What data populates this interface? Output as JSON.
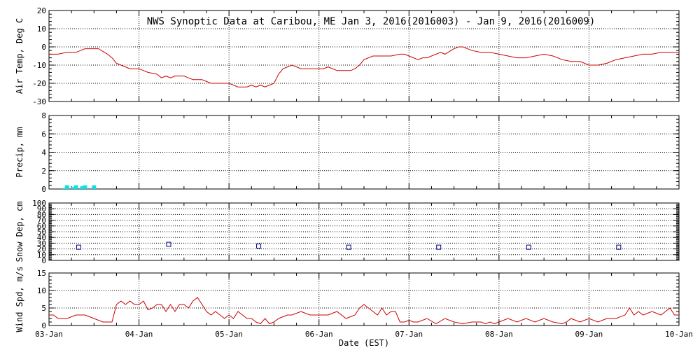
{
  "chart_data": {
    "title": "NWS Synoptic Data at Caribou, ME   Jan  3, 2016(2016003) - Jan  9, 2016(2016009)",
    "xlabel": "Date (EST)",
    "x_ticks": [
      "03-Jan",
      "04-Jan",
      "05-Jan",
      "06-Jan",
      "07-Jan",
      "08-Jan",
      "09-Jan",
      "10-Jan"
    ],
    "x_range_days": [
      0,
      7
    ],
    "colors": {
      "line": "#cc0000",
      "precip": "#00e5e5",
      "snow": "#000080",
      "axis": "#000000",
      "grid": "#000000"
    },
    "panels": [
      {
        "id": "temp",
        "type": "line",
        "ylabel": "Air Temp, Deg C",
        "ylim": [
          -30,
          20
        ],
        "yticks": [
          -30,
          -20,
          -10,
          0,
          10,
          20
        ],
        "grid": true,
        "series": [
          {
            "x": [
              0,
              0.1,
              0.2,
              0.3,
              0.35,
              0.4,
              0.5,
              0.55,
              0.65,
              0.7,
              0.75,
              0.8,
              0.85,
              0.9,
              1.0,
              1.05,
              1.1,
              1.2,
              1.25,
              1.3,
              1.35,
              1.4,
              1.5,
              1.6,
              1.7,
              1.8,
              1.9,
              2.0,
              2.05,
              2.1,
              2.15,
              2.2,
              2.25,
              2.3,
              2.35,
              2.4,
              2.45,
              2.5,
              2.55,
              2.6,
              2.65,
              2.7,
              2.75,
              2.8,
              2.9,
              3.0,
              3.05,
              3.1,
              3.2,
              3.3,
              3.35,
              3.4,
              3.45,
              3.5,
              3.6,
              3.7,
              3.8,
              3.9,
              3.95,
              4.0,
              4.05,
              4.1,
              4.15,
              4.2,
              4.3,
              4.35,
              4.4,
              4.5,
              4.55,
              4.6,
              4.7,
              4.8,
              4.9,
              5.0,
              5.1,
              5.2,
              5.3,
              5.4,
              5.5,
              5.6,
              5.7,
              5.8,
              5.9,
              6.0,
              6.1,
              6.2,
              6.3,
              6.4,
              6.5,
              6.6,
              6.7,
              6.8,
              6.9,
              7.0
            ],
            "y": [
              -4,
              -4,
              -3,
              -3,
              -2,
              -1,
              -1,
              -1,
              -4,
              -6,
              -9,
              -10,
              -11,
              -12,
              -12,
              -13,
              -14,
              -15,
              -17,
              -16,
              -17,
              -16,
              -16,
              -18,
              -18,
              -20,
              -20,
              -20,
              -21,
              -22,
              -22,
              -22,
              -21,
              -22,
              -21,
              -22,
              -21,
              -20,
              -15,
              -12,
              -11,
              -10,
              -11,
              -12,
              -12,
              -12,
              -12,
              -11,
              -13,
              -13,
              -13,
              -12,
              -10,
              -7,
              -5,
              -5,
              -5,
              -4,
              -4,
              -5,
              -6,
              -7,
              -6,
              -6,
              -4,
              -3,
              -4,
              -1,
              0,
              0,
              -2,
              -3,
              -3,
              -4,
              -5,
              -6,
              -6,
              -5,
              -4,
              -5,
              -7,
              -8,
              -8,
              -10,
              -10,
              -9,
              -7,
              -6,
              -5,
              -4,
              -4,
              -3,
              -3,
              -3
            ]
          }
        ]
      },
      {
        "id": "precip",
        "type": "bar",
        "ylabel": "Precip, mm",
        "ylim": [
          0,
          8
        ],
        "yticks": [
          0,
          2,
          4,
          6,
          8
        ],
        "grid": true,
        "series": [
          {
            "x": [
              0.17,
              0.2,
              0.27,
              0.3,
              0.37,
              0.4,
              0.5
            ],
            "y": [
              0.1,
              0.4,
              0.2,
              0.4,
              0.3,
              0.4,
              0.4
            ]
          }
        ]
      },
      {
        "id": "snow",
        "type": "scatter",
        "ylabel": "Snow Dep, cm",
        "ylim": [
          0,
          100
        ],
        "yticks": [
          0,
          10,
          20,
          30,
          40,
          50,
          60,
          70,
          80,
          90,
          100
        ],
        "grid": true,
        "series": [
          {
            "x": [
              0.33,
              1.33,
              2.33,
              3.33,
              4.33,
              5.33,
              6.33
            ],
            "y": [
              23,
              28,
              25,
              23,
              23,
              23,
              23
            ]
          }
        ]
      },
      {
        "id": "wind",
        "type": "line",
        "ylabel": "Wind Spd, m/s",
        "ylim": [
          0,
          15
        ],
        "yticks": [
          0,
          5,
          10,
          15
        ],
        "grid": true,
        "series": [
          {
            "x": [
              0,
              0.05,
              0.1,
              0.2,
              0.3,
              0.4,
              0.5,
              0.6,
              0.7,
              0.75,
              0.8,
              0.85,
              0.9,
              0.95,
              1.0,
              1.05,
              1.1,
              1.15,
              1.2,
              1.25,
              1.3,
              1.35,
              1.4,
              1.45,
              1.5,
              1.55,
              1.6,
              1.65,
              1.7,
              1.75,
              1.8,
              1.85,
              1.9,
              1.95,
              2.0,
              2.05,
              2.1,
              2.15,
              2.2,
              2.25,
              2.3,
              2.35,
              2.4,
              2.45,
              2.5,
              2.55,
              2.6,
              2.65,
              2.7,
              2.8,
              2.9,
              3.0,
              3.1,
              3.2,
              3.3,
              3.4,
              3.45,
              3.5,
              3.55,
              3.6,
              3.65,
              3.7,
              3.75,
              3.8,
              3.85,
              3.9,
              3.95,
              4.0,
              4.05,
              4.1,
              4.2,
              4.3,
              4.4,
              4.5,
              4.6,
              4.7,
              4.8,
              4.85,
              4.9,
              4.95,
              5.0,
              5.1,
              5.2,
              5.3,
              5.4,
              5.5,
              5.6,
              5.7,
              5.75,
              5.8,
              5.9,
              6.0,
              6.1,
              6.2,
              6.3,
              6.4,
              6.45,
              6.5,
              6.55,
              6.6,
              6.7,
              6.8,
              6.85,
              6.9,
              6.95,
              7.0
            ],
            "y": [
              3,
              3,
              2,
              2,
              3,
              3,
              2,
              1,
              1,
              6,
              7,
              6,
              7,
              6,
              6,
              7,
              4.5,
              5,
              6,
              6,
              4,
              6,
              4,
              6,
              6,
              5,
              7,
              8,
              6,
              4,
              3,
              4,
              3,
              2,
              3,
              2,
              4,
              3,
              2,
              2,
              1,
              0.5,
              2,
              0.5,
              1,
              2,
              2.5,
              3,
              3,
              4,
              3,
              3,
              3,
              4,
              2,
              3,
              5,
              6,
              5,
              4,
              3,
              5,
              3,
              4,
              4,
              1,
              1,
              1.5,
              1,
              1,
              2,
              0.5,
              2,
              1,
              0.5,
              1,
              1,
              0.5,
              1,
              0.5,
              1,
              2,
              1,
              2,
              1,
              2,
              1,
              0.5,
              1,
              2,
              1,
              2,
              1,
              2,
              2,
              3,
              5,
              3,
              4,
              3,
              4,
              3,
              4,
              5,
              3,
              3
            ]
          }
        ]
      }
    ]
  }
}
